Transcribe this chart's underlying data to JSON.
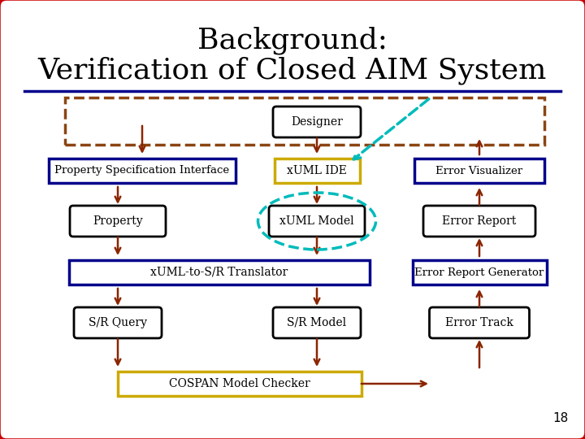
{
  "title_line1": "Background:",
  "title_line2": "Verification of Closed AIM System",
  "background_color": "#ffffff",
  "outer_border_color": "#cc0000",
  "title_underline_color": "#00008b",
  "page_number": "18",
  "fig_w": 7.2,
  "fig_h": 5.4,
  "dpi": 100
}
